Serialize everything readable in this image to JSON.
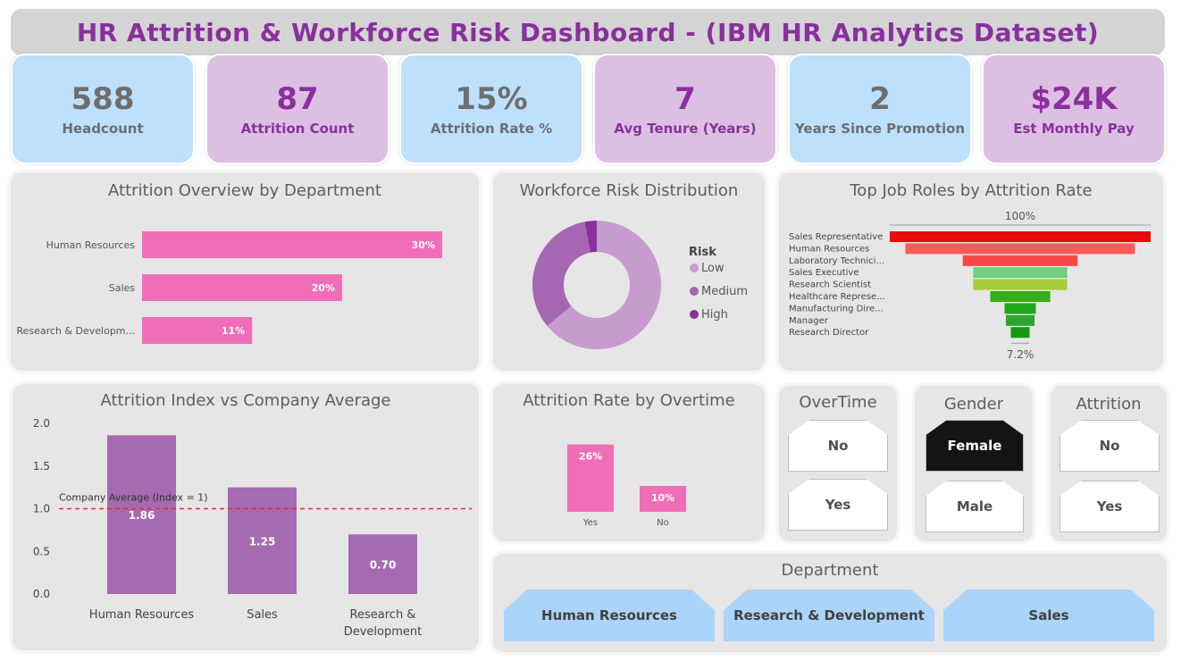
{
  "header": {
    "title": "HR Attrition & Workforce Risk Dashboard - (IBM HR Analytics Dataset)"
  },
  "kpis": [
    {
      "value": "588",
      "label": "Headcount"
    },
    {
      "value": "87",
      "label": "Attrition Count"
    },
    {
      "value": "15%",
      "label": "Attrition Rate %"
    },
    {
      "value": "7",
      "label": "Avg Tenure (Years)"
    },
    {
      "value": "2",
      "label": "Years Since Promotion"
    },
    {
      "value": "$24K",
      "label": "Est Monthly Pay"
    }
  ],
  "panels": {
    "dept_overview": "Attrition Overview by Department",
    "risk": "Workforce Risk Distribution",
    "job_roles": "Top Job Roles by Attrition Rate",
    "index": "Attrition Index vs Company Average",
    "overtime": "Attrition Rate by Overtime"
  },
  "slicers": {
    "overtime": {
      "title": "OverTime",
      "options": [
        "No",
        "Yes"
      ]
    },
    "gender": {
      "title": "Gender",
      "options": [
        "Female",
        "Male"
      ],
      "selected": "Female"
    },
    "attrition": {
      "title": "Attrition",
      "options": [
        "No",
        "Yes"
      ]
    },
    "department": {
      "title": "Department",
      "options": [
        "Human Resources",
        "Research & Development",
        "Sales"
      ]
    }
  },
  "colors": {
    "pink": "#f06eb7",
    "purple": "#a56ab0",
    "title": "#8a2f9e",
    "kpi_blue": "#bde0fd",
    "kpi_purple": "#dcc0e2"
  },
  "chart_data": [
    {
      "type": "bar",
      "orientation": "horizontal",
      "title": "Attrition Overview by Department",
      "categories": [
        "Human Resources",
        "Sales",
        "Research & Developm..."
      ],
      "values": [
        30,
        20,
        11
      ],
      "data_labels": [
        "30%",
        "20%",
        "11%"
      ],
      "color": "#f06eb7"
    },
    {
      "type": "pie",
      "subtype": "donut",
      "title": "Workforce Risk Distribution",
      "legend_title": "Risk",
      "legend_position": "right",
      "labels": [
        "Low",
        "Medium",
        "High"
      ],
      "values": [
        64,
        33,
        3
      ],
      "colors": [
        "#c89bcf",
        "#a566b2",
        "#8a2f9e"
      ]
    },
    {
      "type": "funnel",
      "title": "Top Job Roles by Attrition Rate",
      "categories": [
        "Sales Representative",
        "Human Resources",
        "Laboratory Technici...",
        "Sales Executive",
        "Research Scientist",
        "Healthcare Represe...",
        "Manufacturing Dire...",
        "Manager",
        "Research Director"
      ],
      "values": [
        100,
        88,
        44,
        36,
        36,
        23,
        12,
        11,
        7.2
      ],
      "top_label": "100%",
      "bottom_label": "7.2%",
      "colors": [
        "#e70d0d",
        "#f45c5c",
        "#f44747",
        "#6fcf80",
        "#a6cc38",
        "#35ad1a",
        "#1ea71a",
        "#2da52d",
        "#139b13"
      ]
    },
    {
      "type": "bar",
      "title": "Attrition Index vs Company Average",
      "categories": [
        "Human Resources",
        "Sales",
        "Research & Development"
      ],
      "values": [
        1.86,
        1.25,
        0.7
      ],
      "data_labels": [
        "1.86",
        "1.25",
        "0.70"
      ],
      "ylim": [
        0,
        2
      ],
      "yticks": [
        "0.0",
        "0.5",
        "1.0",
        "1.5",
        "2.0"
      ],
      "reference_line": {
        "value": 1,
        "label": "Company Average (Index = 1)",
        "color": "#e03030"
      },
      "color": "#a56ab0"
    },
    {
      "type": "bar",
      "title": "Attrition Rate by Overtime",
      "categories": [
        "Yes",
        "No"
      ],
      "values": [
        26,
        10
      ],
      "data_labels": [
        "26%",
        "10%"
      ],
      "color": "#f06eb7"
    }
  ]
}
